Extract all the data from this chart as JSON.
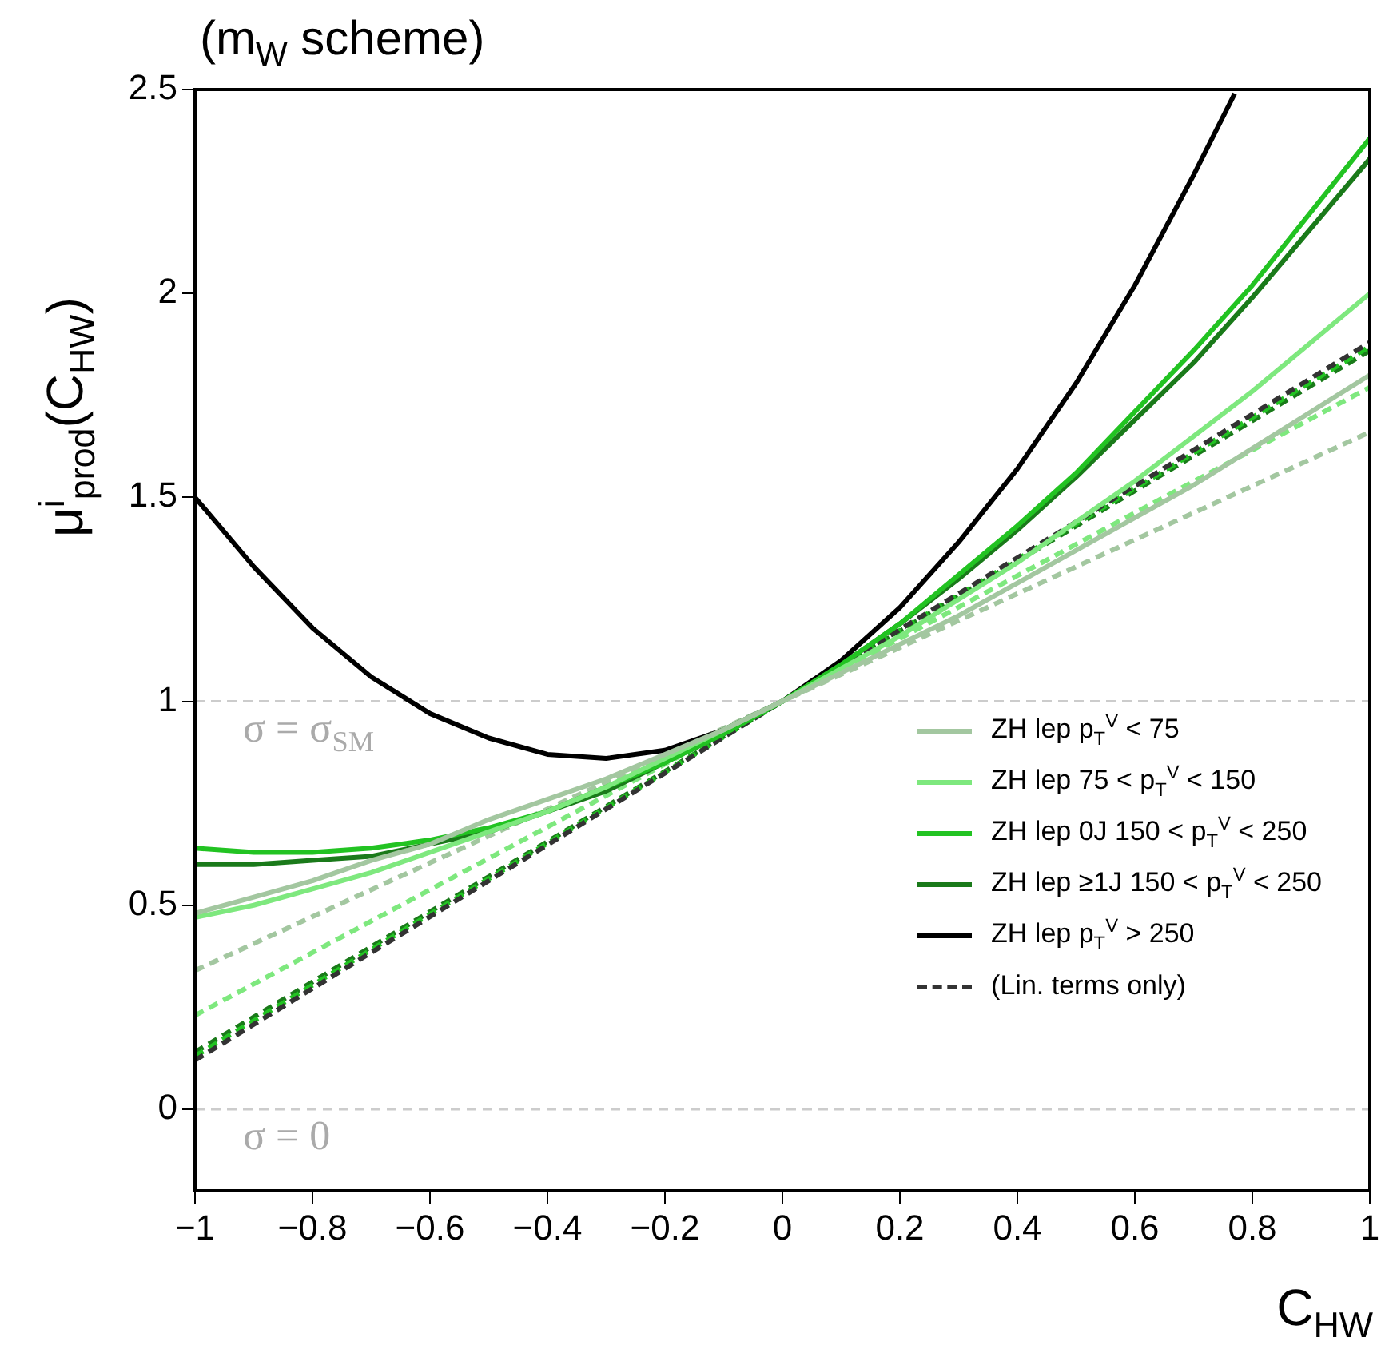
{
  "chart_data": {
    "type": "line",
    "title": "(m$_{W}$ scheme)",
    "xlabel": "C$_{HW}$",
    "ylabel": "μ$^{i}$$_{prod}$(C$_{HW}$)",
    "x": [
      -1,
      -0.9,
      -0.8,
      -0.7,
      -0.6,
      -0.5,
      -0.4,
      -0.3,
      -0.2,
      -0.1,
      0,
      0.1,
      0.2,
      0.3,
      0.4,
      0.5,
      0.6,
      0.7,
      0.8,
      0.9,
      1
    ],
    "series": [
      {
        "name": "ZH lep p$_{T}$$^{V}$ < 75",
        "color": "#a3c7a0",
        "values": [
          0.48,
          0.52,
          0.56,
          0.61,
          0.65,
          0.71,
          0.76,
          0.81,
          0.87,
          0.93,
          1,
          1.07,
          1.14,
          1.21,
          1.29,
          1.37,
          1.45,
          1.53,
          1.62,
          1.71,
          1.8
        ]
      },
      {
        "name": "ZH lep 75 < p$_{T}$$^{V}$ < 150",
        "color": "#7ee87e",
        "values": [
          0.47,
          0.5,
          0.54,
          0.58,
          0.63,
          0.68,
          0.73,
          0.79,
          0.86,
          0.93,
          1,
          1.08,
          1.16,
          1.25,
          1.34,
          1.44,
          1.54,
          1.65,
          1.76,
          1.88,
          2.0
        ]
      },
      {
        "name": "ZH lep 0J 150 < p$_{T}$$^{V}$ < 250",
        "color": "#22c322",
        "values": [
          0.64,
          0.63,
          0.63,
          0.64,
          0.66,
          0.69,
          0.73,
          0.79,
          0.85,
          0.92,
          1,
          1.09,
          1.19,
          1.31,
          1.43,
          1.56,
          1.71,
          1.86,
          2.02,
          2.2,
          2.38
        ]
      },
      {
        "name": "ZH lep ≥1J 150 < p$_{T}$$^{V}$ < 250",
        "color": "#1a7a1a",
        "values": [
          0.6,
          0.6,
          0.61,
          0.62,
          0.65,
          0.68,
          0.73,
          0.78,
          0.85,
          0.92,
          1,
          1.09,
          1.19,
          1.3,
          1.42,
          1.55,
          1.69,
          1.83,
          1.99,
          2.16,
          2.33
        ]
      },
      {
        "name": "ZH lep p$_{T}$$^{V}$ > 250",
        "color": "#000000",
        "x": [
          -1,
          -0.9,
          -0.8,
          -0.7,
          -0.6,
          -0.5,
          -0.4,
          -0.3,
          -0.2,
          -0.1,
          0,
          0.1,
          0.2,
          0.3,
          0.4,
          0.5,
          0.6,
          0.7,
          0.77
        ],
        "values": [
          1.5,
          1.33,
          1.18,
          1.06,
          0.97,
          0.91,
          0.87,
          0.86,
          0.88,
          0.93,
          1,
          1.1,
          1.23,
          1.39,
          1.57,
          1.78,
          2.02,
          2.29,
          2.49
        ]
      },
      {
        "name": "(Lin. terms only)",
        "color": "#333333",
        "line_style": "dashed",
        "x": [
          -1,
          1
        ],
        "values": [
          0.12,
          1.88
        ]
      },
      {
        "color": "#a3c7a0",
        "line_style": "dashed",
        "x": [
          -1,
          1
        ],
        "values": [
          0.34,
          1.66
        ]
      },
      {
        "color": "#7ee87e",
        "line_style": "dashed",
        "x": [
          -1,
          1
        ],
        "values": [
          0.23,
          1.77
        ]
      },
      {
        "color": "#22c322",
        "line_style": "dashed",
        "x": [
          -1,
          1
        ],
        "values": [
          0.13,
          1.87
        ]
      },
      {
        "color": "#1a7a1a",
        "line_style": "dashed",
        "x": [
          -1,
          1
        ],
        "values": [
          0.14,
          1.86
        ]
      }
    ],
    "xlim": [
      -1,
      1
    ],
    "xticks": [
      {
        "value": -1,
        "label": "−1"
      },
      {
        "value": -0.8,
        "label": "−0.8"
      },
      {
        "value": -0.6,
        "label": "−0.6"
      },
      {
        "value": -0.4,
        "label": "−0.4"
      },
      {
        "value": -0.2,
        "label": "−0.2"
      },
      0,
      0.2,
      0.4,
      0.6,
      0.8,
      1
    ],
    "ylim": [
      -0.2,
      2.5
    ],
    "yticks": [
      0,
      0.5,
      1,
      1.5,
      2,
      2.5
    ],
    "ref_lines": [
      {
        "axis": "y",
        "value": 1,
        "label": "σ = σ$_{SM}$",
        "color": "#cccccc",
        "line_style": "dashed"
      },
      {
        "axis": "y",
        "value": 0,
        "label": "σ = 0",
        "color": "#cccccc",
        "line_style": "dashed"
      }
    ],
    "legend": "bottom right",
    "marker": "none",
    "grid": false
  }
}
